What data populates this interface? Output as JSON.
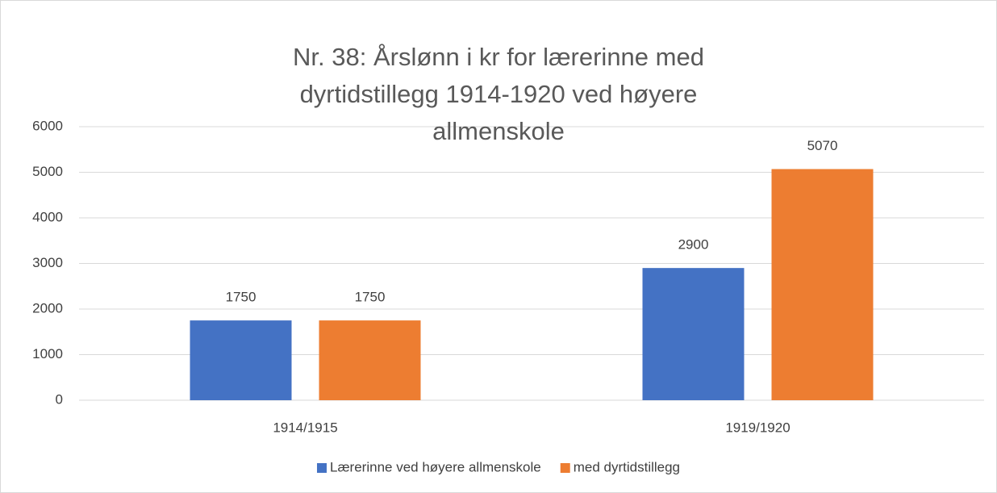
{
  "chart_data": {
    "type": "bar",
    "title": "Nr. 38: Årslønn i kr for lærerinne med dyrtidstillegg 1914-1920 ved høyere allmenskole",
    "categories": [
      "1914/1915",
      "1919/1920"
    ],
    "series": [
      {
        "name": "Lærerinne ved høyere allmenskole",
        "color": "#4472c4",
        "values": [
          1750,
          2900
        ]
      },
      {
        "name": "med dyrtidstillegg",
        "color": "#ed7d31",
        "values": [
          1750,
          5070
        ]
      }
    ],
    "ylim": [
      0,
      6000
    ],
    "yticks": [
      0,
      1000,
      2000,
      3000,
      4000,
      5000,
      6000
    ],
    "grid": true,
    "legend": "bottom"
  }
}
